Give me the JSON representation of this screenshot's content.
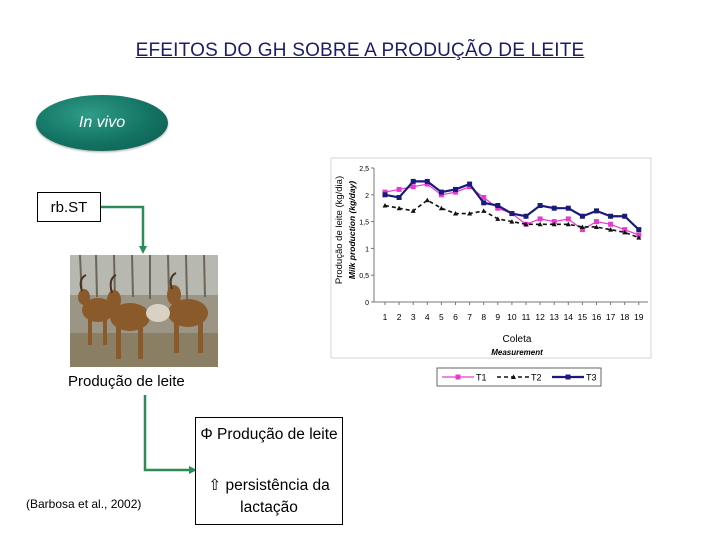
{
  "slide": {
    "title": "EFEITOS DO GH SOBRE A PRODUÇÃO DE LEITE",
    "in_vivo": "In vivo",
    "treatment": "rb.ST",
    "production_label": "Produção de leite",
    "result_line1": "Φ Produção de leite",
    "result_line2": "⇧ persistência da lactação",
    "citation": "(Barbosa et al., 2002)"
  },
  "colors": {
    "title": "#1c1c6e",
    "ellipse": "#137363",
    "arrow": "#2e8b57",
    "t1": "#e83ad0",
    "t2": "#111111",
    "t3": "#1a1a7a"
  },
  "chart_data": {
    "type": "line",
    "title": "",
    "ylabel": "Produção de leite (kg/dia)",
    "ylabel_en": "Milk production (kg/day)",
    "xlabel": "Coleta",
    "xlabel_en": "Measurement",
    "x": [
      1,
      2,
      3,
      4,
      5,
      6,
      7,
      8,
      9,
      10,
      11,
      12,
      13,
      14,
      15,
      16,
      17,
      18,
      19
    ],
    "ylim": [
      0,
      2.5
    ],
    "yticks": [
      0,
      0.5,
      1,
      1.5,
      2,
      2.5
    ],
    "ytick_labels": [
      "0",
      "0,5",
      "1",
      "1,5",
      "2",
      "2,5"
    ],
    "legend_position": "bottom",
    "series": [
      {
        "name": "T1",
        "values": [
          2.05,
          2.1,
          2.15,
          2.2,
          2.0,
          2.05,
          2.15,
          1.95,
          1.75,
          1.65,
          1.45,
          1.55,
          1.5,
          1.55,
          1.35,
          1.5,
          1.45,
          1.35,
          1.25
        ]
      },
      {
        "name": "T2",
        "values": [
          1.8,
          1.75,
          1.7,
          1.9,
          1.75,
          1.65,
          1.65,
          1.7,
          1.55,
          1.5,
          1.45,
          1.45,
          1.45,
          1.45,
          1.4,
          1.4,
          1.35,
          1.3,
          1.2
        ]
      },
      {
        "name": "T3",
        "values": [
          2.0,
          1.95,
          2.25,
          2.25,
          2.05,
          2.1,
          2.2,
          1.85,
          1.8,
          1.65,
          1.6,
          1.8,
          1.75,
          1.75,
          1.6,
          1.7,
          1.6,
          1.6,
          1.35
        ]
      }
    ]
  }
}
